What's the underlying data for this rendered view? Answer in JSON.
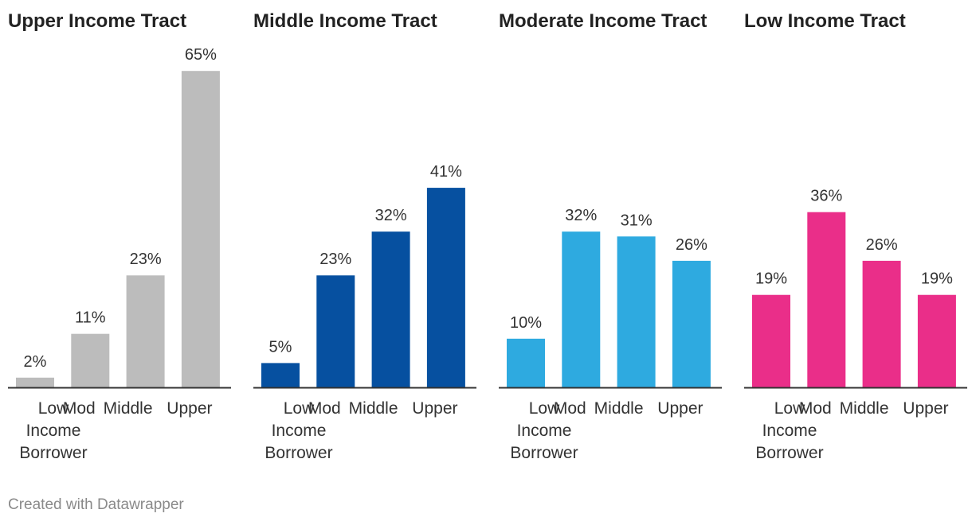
{
  "chart_data": [
    {
      "type": "bar",
      "title": "Upper Income Tract",
      "categories": [
        "Low Income Borrower",
        "Mod",
        "Middle",
        "Upper"
      ],
      "category_lines": [
        [
          "Low",
          "Income",
          "Borrower"
        ],
        [
          "Mod"
        ],
        [
          "Middle"
        ],
        [
          "Upper"
        ]
      ],
      "values": [
        2,
        11,
        23,
        65
      ],
      "value_labels": [
        "2%",
        "11%",
        "23%",
        "65%"
      ],
      "color": "#bcbcbc",
      "ylim": [
        0,
        65
      ]
    },
    {
      "type": "bar",
      "title": "Middle Income Tract",
      "categories": [
        "Low Income Borrower",
        "Mod",
        "Middle",
        "Upper"
      ],
      "category_lines": [
        [
          "Low",
          "Income",
          "Borrower"
        ],
        [
          "Mod"
        ],
        [
          "Middle"
        ],
        [
          "Upper"
        ]
      ],
      "values": [
        5,
        23,
        32,
        41
      ],
      "value_labels": [
        "5%",
        "23%",
        "32%",
        "41%"
      ],
      "color": "#0650a0",
      "ylim": [
        0,
        65
      ]
    },
    {
      "type": "bar",
      "title": "Moderate Income Tract",
      "categories": [
        "Low Income Borrower",
        "Mod",
        "Middle",
        "Upper"
      ],
      "category_lines": [
        [
          "Low",
          "Income",
          "Borrower"
        ],
        [
          "Mod"
        ],
        [
          "Middle"
        ],
        [
          "Upper"
        ]
      ],
      "values": [
        10,
        32,
        31,
        26
      ],
      "value_labels": [
        "10%",
        "32%",
        "31%",
        "26%"
      ],
      "color": "#2eaae0",
      "ylim": [
        0,
        65
      ]
    },
    {
      "type": "bar",
      "title": "Low Income Tract",
      "categories": [
        "Low Income Borrower",
        "Mod",
        "Middle",
        "Upper"
      ],
      "category_lines": [
        [
          "Low",
          "Income",
          "Borrower"
        ],
        [
          "Mod"
        ],
        [
          "Middle"
        ],
        [
          "Upper"
        ]
      ],
      "values": [
        19,
        36,
        26,
        19
      ],
      "value_labels": [
        "19%",
        "36%",
        "26%",
        "19%"
      ],
      "color": "#ea2e89",
      "ylim": [
        0,
        65
      ]
    }
  ],
  "footer": "Created with Datawrapper"
}
